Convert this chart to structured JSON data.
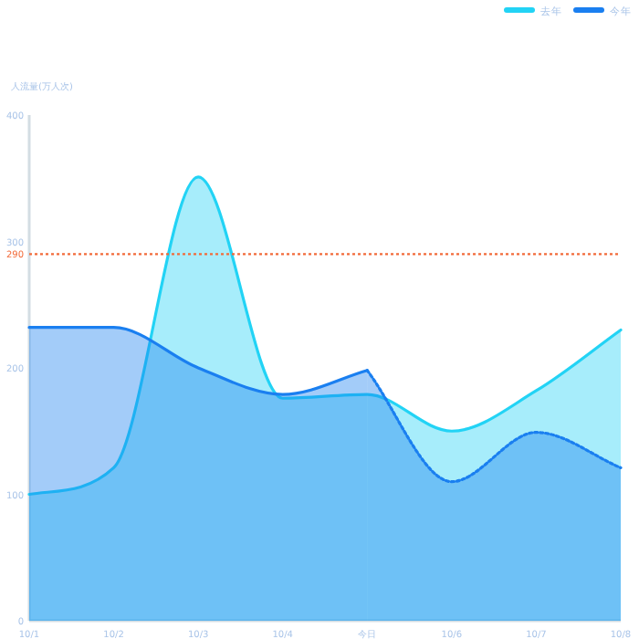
{
  "chart_data": {
    "type": "area",
    "ylabel": "人流量(万人次)",
    "categories": [
      "10/1",
      "10/2",
      "10/3",
      "10/4",
      "今日",
      "10/6",
      "10/7",
      "10/8"
    ],
    "series": [
      {
        "name": "去年",
        "color": "#22d3f5",
        "values": [
          100,
          121,
          351,
          176,
          179,
          150,
          182,
          230
        ]
      },
      {
        "name": "今年",
        "color": "#1a7ff0",
        "values": [
          232,
          232,
          200,
          179,
          198,
          null,
          null,
          null
        ]
      },
      {
        "color": "#1a7ff0",
        "line_style": "dotted",
        "values": [
          null,
          null,
          null,
          null,
          198,
          110,
          149,
          121
        ]
      }
    ],
    "ylim": [
      0,
      400
    ],
    "yticks": [
      0,
      100,
      200,
      300,
      400
    ],
    "grid": false,
    "legend": "top right",
    "ref_lines": [
      {
        "axis": "y",
        "value": 290,
        "label": "290",
        "color": "#f26b3a",
        "line_style": "dotted"
      }
    ]
  }
}
